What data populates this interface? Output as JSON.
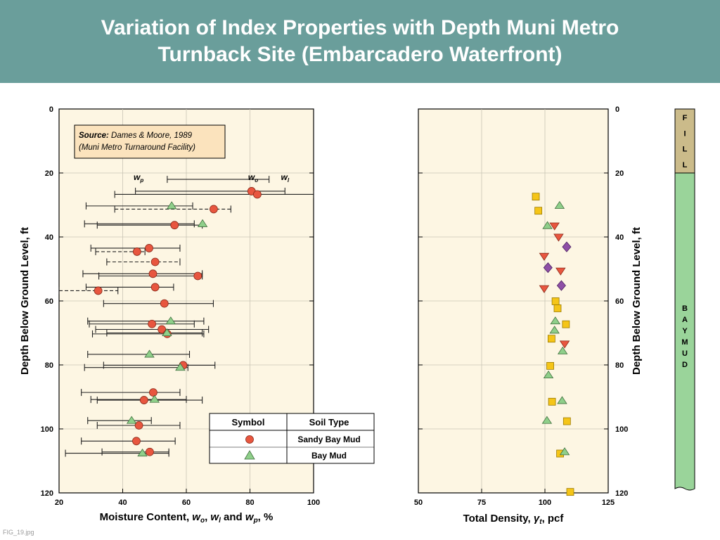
{
  "header": {
    "title_line1": "Variation of Index Properties with Depth Muni Metro",
    "title_line2": "Turnback Site (Embarcadero Waterfront)"
  },
  "figure_name": "FIG_19.jpg",
  "colors": {
    "header_bg": "#6a9e9b",
    "plot_bg": "#fdf6e3",
    "source_box": "#fbe3bd",
    "sandy_bay_mud": "#e8563f",
    "bay_mud": "#8fcf8a",
    "square_marker": "#f5c518",
    "inverted_triangle": "#e8563f",
    "diamond": "#8e4fa6",
    "fill_layer": "#cbbb8a",
    "bay_mud_layer": "#9ad49a"
  },
  "chart_data": [
    {
      "type": "scatter",
      "subtype": "range-bar",
      "source_line1": "Source: Dames & Moore, 1989",
      "source_label": "Source:",
      "source_text": " Dames & Moore, 1989",
      "source_line2": "(Muni Metro Turnaround Facility)",
      "xlabel": "Moisture Content, wo, wl and wp, %",
      "xlabel_parts": {
        "a": "Moisture Content, ",
        "w": "w",
        "o": "o",
        "c1": ", ",
        "l": "l",
        "c2": " and ",
        "p": "p",
        "end": ", %"
      },
      "ylabel": "Depth Below Ground Level, ft",
      "xlim": [
        20,
        100
      ],
      "ylim": [
        0,
        120
      ],
      "y_inverted": true,
      "x_ticks": [
        20,
        40,
        60,
        80,
        100
      ],
      "y_ticks": [
        0,
        20,
        40,
        60,
        80,
        100,
        120
      ],
      "grid": true,
      "annotations": [
        {
          "text": "w",
          "sub": "p",
          "x": 45,
          "y": 24
        },
        {
          "text": "w",
          "sub": "o",
          "x": 81,
          "y": 24
        },
        {
          "text": "w",
          "sub": "l",
          "x": 91,
          "y": 24
        }
      ],
      "legend": {
        "position": "bottom-right",
        "header_symbol": "Symbol",
        "header_soil": "Soil Type",
        "entries": [
          "Sandy Bay Mud",
          "Bay Mud"
        ]
      },
      "series": [
        {
          "name": "Sandy Bay Mud",
          "marker": "circle",
          "points": [
            {
              "depth": 25.7,
              "wo": 80.5,
              "wp": 44,
              "wl": 91
            },
            {
              "depth": 26.7,
              "wo": 82.3,
              "wp": 37.5,
              "wl": 100
            },
            {
              "depth": 31.3,
              "wo": 68.6,
              "wp": 37.5,
              "wl": 74,
              "dashed": true
            },
            {
              "depth": 36.3,
              "wo": 56.3,
              "wp": 32,
              "wl": 65
            },
            {
              "depth": 43.5,
              "wo": 48.3,
              "wp": 30,
              "wl": 58
            },
            {
              "depth": 44.6,
              "wo": 44.5,
              "wp": 31.5,
              "wl": 47,
              "dashed": true
            },
            {
              "depth": 47.8,
              "wo": 50.2,
              "wp": 35,
              "wl": 58,
              "dashed": true
            },
            {
              "depth": 51.5,
              "wo": 49.5,
              "wp": 27.5,
              "wl": 65
            },
            {
              "depth": 52.2,
              "wo": 63.6,
              "wp": 32.5,
              "wl": 65
            },
            {
              "depth": 55.7,
              "wo": 50.2,
              "wp": 28.5,
              "wl": 56
            },
            {
              "depth": 56.8,
              "wo": 32.3,
              "wp": 20,
              "wl": 38.5,
              "dashed": true
            },
            {
              "depth": 60.8,
              "wo": 53.1,
              "wp": 34,
              "wl": 68.5
            },
            {
              "depth": 67.2,
              "wo": 49.2,
              "wp": 29.5,
              "wl": 62.5
            },
            {
              "depth": 68.9,
              "wo": 52.3,
              "wp": 31.5,
              "wl": 67
            },
            {
              "depth": 70.3,
              "wo": 54.0,
              "wp": 30.5,
              "wl": 65.5
            },
            {
              "depth": 80.1,
              "wo": 59.0,
              "wp": 34,
              "wl": 69
            },
            {
              "depth": 88.6,
              "wo": 49.6,
              "wp": 27,
              "wl": 58
            },
            {
              "depth": 91.0,
              "wo": 46.7,
              "wp": 32,
              "wl": 65
            },
            {
              "depth": 98.9,
              "wo": 45.1,
              "wp": 32,
              "wl": 58
            },
            {
              "depth": 103.8,
              "wo": 44.3,
              "wp": 27,
              "wl": 56.5
            },
            {
              "depth": 107.2,
              "wo": 48.5,
              "wp": 33.5,
              "wl": 54.5
            }
          ]
        },
        {
          "name": "Bay Mud",
          "marker": "triangle",
          "points": [
            {
              "depth": 30.3,
              "wo": 55.4,
              "wp": 28.5,
              "wl": 62
            },
            {
              "depth": 35.9,
              "wo": 65.1,
              "wp": 28,
              "wl": 62.5
            },
            {
              "depth": 66.3,
              "wo": 55.1,
              "wp": 29,
              "wl": 65.5
            },
            {
              "depth": 70.0,
              "wo": 53.9,
              "wp": 35,
              "wl": 65
            },
            {
              "depth": 76.7,
              "wo": 48.4,
              "wp": 29,
              "wl": 61
            },
            {
              "depth": 80.8,
              "wo": 58.1,
              "wp": 28,
              "wl": 60.5
            },
            {
              "depth": 90.8,
              "wo": 50.0,
              "wp": 30,
              "wl": 60
            },
            {
              "depth": 97.4,
              "wo": 42.8,
              "wp": 29,
              "wl": 49
            },
            {
              "depth": 107.6,
              "wo": 46.2,
              "wp": 22,
              "wl": 54.5
            }
          ]
        },
        {
          "name": "Range only",
          "marker": "none",
          "points": [
            {
              "depth": 22.0,
              "wp": 54,
              "wl": 86
            }
          ]
        }
      ]
    },
    {
      "type": "scatter",
      "xlabel": "Total Density, γt, pcf",
      "xlabel_parts": {
        "a": "Total Density, ",
        "g": "γ",
        "t": "t",
        "end": ", pcf"
      },
      "ylabel": "Depth Below Ground Level, ft",
      "xlim": [
        50,
        125
      ],
      "ylim": [
        0,
        120
      ],
      "y_inverted": true,
      "x_ticks": [
        50,
        75,
        100,
        125
      ],
      "y_ticks": [
        0,
        20,
        40,
        60,
        80,
        100,
        120
      ],
      "grid": true,
      "series": [
        {
          "marker": "square",
          "points": [
            {
              "x": 96.4,
              "y": 27.4
            },
            {
              "x": 97.4,
              "y": 31.8
            },
            {
              "x": 104.2,
              "y": 60.1
            },
            {
              "x": 105.0,
              "y": 62.3
            },
            {
              "x": 108.3,
              "y": 67.3
            },
            {
              "x": 102.6,
              "y": 71.8
            },
            {
              "x": 102.1,
              "y": 80.3
            },
            {
              "x": 102.8,
              "y": 91.5
            },
            {
              "x": 108.7,
              "y": 97.6
            },
            {
              "x": 106.0,
              "y": 107.7
            },
            {
              "x": 110.0,
              "y": 119.7
            }
          ]
        },
        {
          "marker": "triangle",
          "points": [
            {
              "x": 105.8,
              "y": 30.2
            },
            {
              "x": 101.0,
              "y": 36.5
            },
            {
              "x": 104.1,
              "y": 66.3
            },
            {
              "x": 103.8,
              "y": 69.2
            },
            {
              "x": 107.0,
              "y": 75.7
            },
            {
              "x": 101.4,
              "y": 83.2
            },
            {
              "x": 106.8,
              "y": 91.2
            },
            {
              "x": 100.8,
              "y": 97.4
            },
            {
              "x": 107.8,
              "y": 107.2
            }
          ]
        },
        {
          "marker": "inverted-triangle",
          "points": [
            {
              "x": 103.8,
              "y": 36.5
            },
            {
              "x": 105.4,
              "y": 40.0
            },
            {
              "x": 99.7,
              "y": 46.0
            },
            {
              "x": 106.2,
              "y": 50.6
            },
            {
              "x": 99.7,
              "y": 56.1
            },
            {
              "x": 107.8,
              "y": 73.4
            }
          ]
        },
        {
          "marker": "diamond",
          "points": [
            {
              "x": 108.6,
              "y": 43.1
            },
            {
              "x": 101.2,
              "y": 49.6
            },
            {
              "x": 106.5,
              "y": 55.2
            }
          ]
        }
      ]
    },
    {
      "type": "table",
      "subtype": "soil-column",
      "layers": [
        {
          "name": "FILL",
          "letters": [
            "F",
            "I",
            "L",
            "L"
          ],
          "top": 0,
          "bottom": 20
        },
        {
          "name": "BAY MUD",
          "letters": [
            "B",
            "A",
            "Y",
            "M",
            "U",
            "D"
          ],
          "top": 20,
          "bottom": 120
        }
      ]
    }
  ]
}
